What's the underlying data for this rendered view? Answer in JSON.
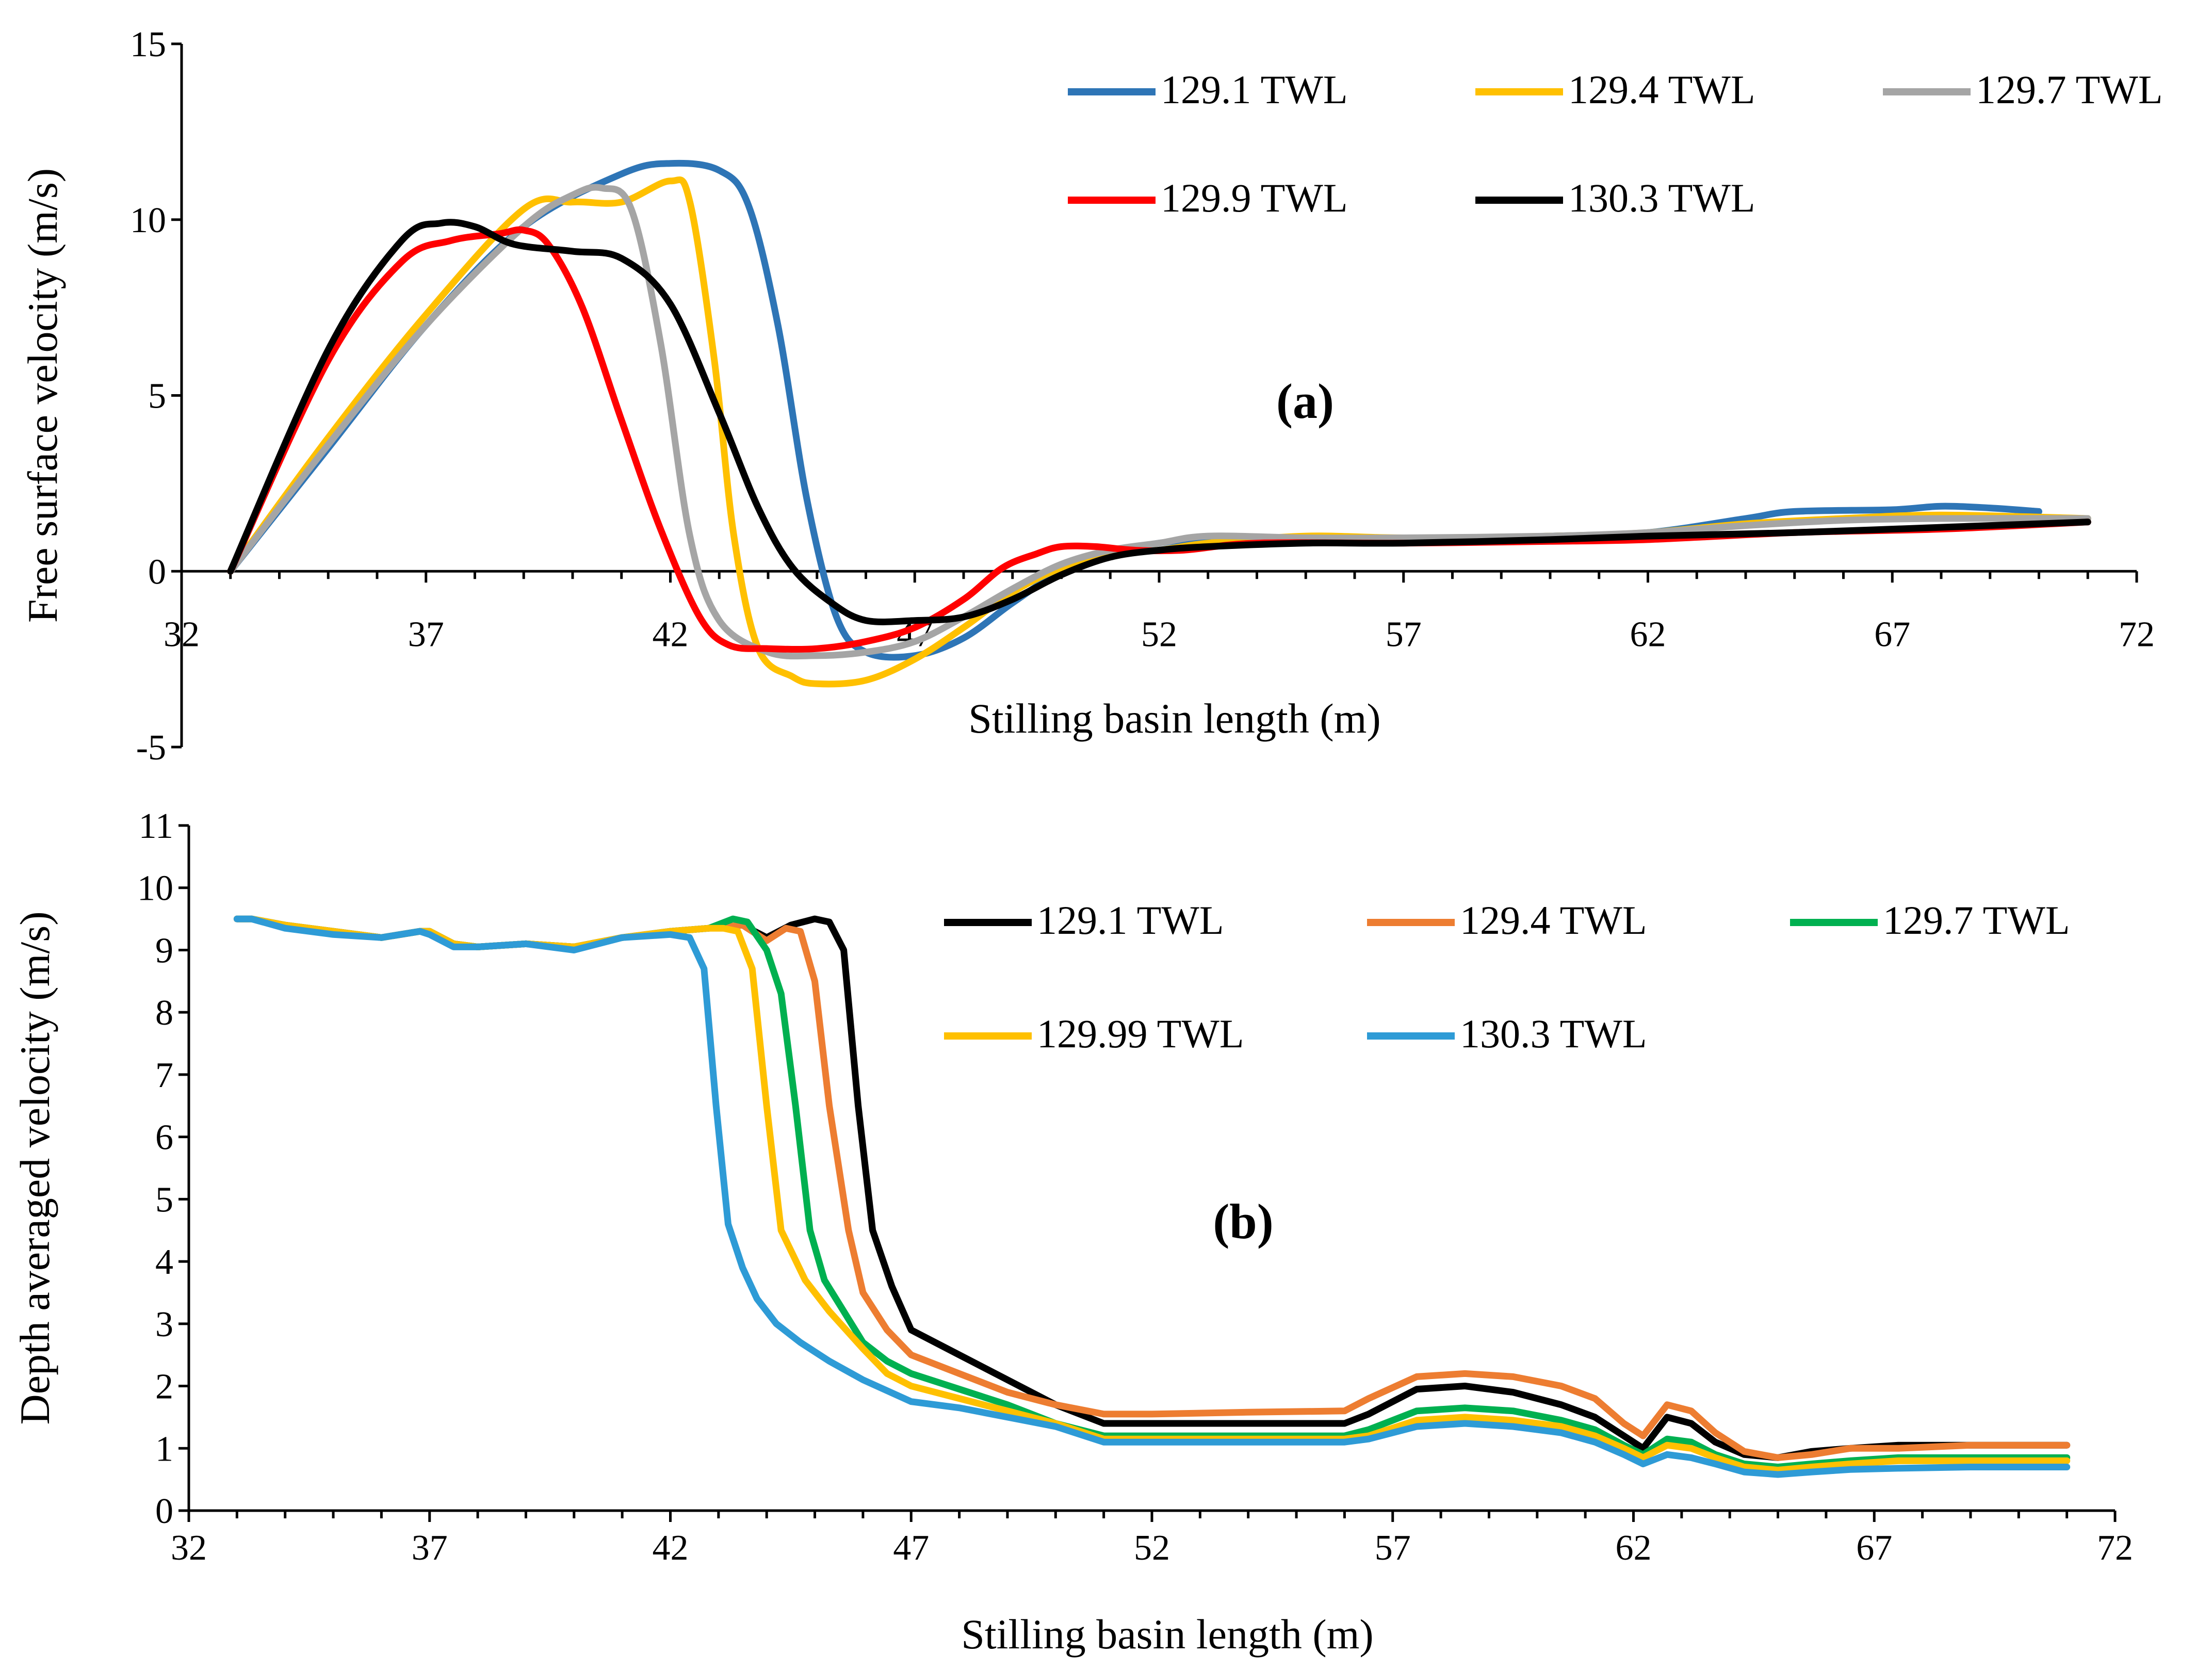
{
  "chart_data": [
    {
      "id": "a",
      "type": "line",
      "panel_label": "(a)",
      "title": "",
      "xlabel": "Stilling basin length (m)",
      "ylabel": "Free surface velocity (m/s)",
      "xlim": [
        32,
        72
      ],
      "ylim": [
        -5,
        15
      ],
      "xticks": [
        "32",
        "37",
        "42",
        "47",
        "52",
        "57",
        "62",
        "67",
        "72"
      ],
      "yticks": [
        "-5",
        "0",
        "5",
        "10",
        "15"
      ],
      "grid": false,
      "legend": "top-right",
      "series": [
        {
          "name": "129.1 TWL",
          "color": "#2E75B6",
          "x": [
            33,
            35,
            37,
            39,
            41,
            42,
            43,
            43.6,
            44.2,
            44.8,
            45.4,
            46,
            47,
            48,
            49,
            50,
            51,
            52,
            53,
            55,
            57,
            60,
            62,
            64,
            65,
            67,
            68,
            69,
            70
          ],
          "y": [
            0,
            3.5,
            7,
            9.8,
            11.3,
            11.6,
            11.4,
            10.4,
            7,
            2,
            -1.3,
            -2.3,
            -2.4,
            -1.9,
            -0.9,
            0,
            0.5,
            0.8,
            0.9,
            0.9,
            0.9,
            1,
            1.1,
            1.5,
            1.7,
            1.75,
            1.85,
            1.8,
            1.7
          ]
        },
        {
          "name": "129.4 TWL",
          "color": "#FFC000",
          "x": [
            33,
            35,
            37,
            39,
            40,
            41,
            42,
            42.4,
            42.9,
            43.3,
            43.8,
            44.5,
            45,
            46,
            47,
            48,
            49,
            50,
            51,
            52,
            53,
            55,
            57,
            60,
            62,
            64,
            66,
            68,
            71
          ],
          "y": [
            0,
            3.8,
            7.3,
            10.3,
            10.5,
            10.5,
            11.1,
            10.5,
            6,
            1,
            -2.2,
            -3,
            -3.2,
            -3.1,
            -2.5,
            -1.6,
            -0.6,
            0.1,
            0.5,
            0.6,
            0.8,
            1,
            0.95,
            1,
            1.1,
            1.35,
            1.5,
            1.6,
            1.5
          ]
        },
        {
          "name": "129.7 TWL",
          "color": "#A5A5A5",
          "x": [
            33,
            35,
            37,
            39,
            40,
            40.6,
            41.2,
            41.8,
            42.4,
            43,
            44,
            45,
            46,
            47,
            48,
            49,
            50,
            51,
            52,
            53,
            55,
            57,
            60,
            62,
            64,
            66,
            68,
            71
          ],
          "y": [
            0,
            3.6,
            7,
            9.8,
            10.7,
            10.9,
            10.3,
            6.5,
            1,
            -1.4,
            -2.3,
            -2.4,
            -2.3,
            -2,
            -1.3,
            -0.5,
            0.2,
            0.6,
            0.8,
            1,
            0.95,
            0.95,
            1,
            1.1,
            1.3,
            1.45,
            1.5,
            1.5
          ]
        },
        {
          "name": "129.9 TWL",
          "color": "#FF0000",
          "x": [
            33,
            35,
            36.5,
            37.5,
            38.5,
            39,
            39.5,
            40.2,
            41,
            41.8,
            42.6,
            43.2,
            44,
            45,
            46,
            47,
            48,
            48.8,
            49.5,
            50,
            50.7,
            51.5,
            52.5,
            54,
            57,
            60,
            62,
            65,
            68,
            71
          ],
          "y": [
            0,
            6,
            8.8,
            9.4,
            9.6,
            9.7,
            9.3,
            7.5,
            4.3,
            1.2,
            -1.3,
            -2.1,
            -2.2,
            -2.2,
            -2,
            -1.6,
            -0.8,
            0.1,
            0.5,
            0.7,
            0.7,
            0.6,
            0.6,
            0.8,
            0.8,
            0.85,
            0.9,
            1.1,
            1.2,
            1.4
          ]
        },
        {
          "name": "130.3 TWL",
          "color": "#000000",
          "x": [
            33,
            35,
            36.5,
            37.3,
            38,
            38.8,
            40,
            41,
            42,
            43,
            43.8,
            44.5,
            45.3,
            46,
            47,
            48,
            49,
            50,
            51,
            52,
            53,
            55,
            57,
            60,
            62,
            65,
            68,
            71
          ],
          "y": [
            0,
            6.3,
            9.4,
            9.9,
            9.8,
            9.3,
            9.1,
            8.9,
            7.6,
            4.5,
            1.8,
            0.1,
            -0.9,
            -1.4,
            -1.4,
            -1.3,
            -0.8,
            -0.1,
            0.4,
            0.6,
            0.7,
            0.8,
            0.8,
            0.9,
            1,
            1.1,
            1.25,
            1.4
          ]
        }
      ]
    },
    {
      "id": "b",
      "type": "line",
      "panel_label": "(b)",
      "title": "",
      "xlabel": "Stilling basin length (m)",
      "ylabel": "Depth averaged velocity (m/s)",
      "xlim": [
        32,
        72
      ],
      "ylim": [
        0,
        11
      ],
      "xticks": [
        "32",
        "37",
        "42",
        "47",
        "52",
        "57",
        "62",
        "67",
        "72"
      ],
      "yticks": [
        "0",
        "1",
        "2",
        "3",
        "4",
        "5",
        "6",
        "7",
        "8",
        "9",
        "10",
        "11"
      ],
      "grid": false,
      "legend": "top-right",
      "series": [
        {
          "name": "129.1 TWL",
          "color": "#000000",
          "x": [
            33,
            33.3,
            34,
            35,
            36,
            36.8,
            37,
            37.5,
            38,
            39,
            40,
            41,
            42,
            42.8,
            43.5,
            44,
            44.5,
            45,
            45.3,
            45.6,
            45.9,
            46.2,
            46.6,
            47,
            48,
            49,
            50,
            51,
            52,
            54,
            56,
            56.5,
            57.5,
            58.5,
            59.5,
            60.5,
            61.2,
            61.8,
            62.2,
            62.7,
            63.2,
            63.7,
            64.3,
            65,
            65.7,
            66.5,
            67.5,
            69,
            71
          ],
          "y": [
            9.5,
            9.5,
            9.4,
            9.3,
            9.2,
            9.3,
            9.3,
            9.1,
            9.05,
            9.1,
            9.05,
            9.2,
            9.3,
            9.35,
            9.4,
            9.2,
            9.4,
            9.5,
            9.45,
            9,
            6.5,
            4.5,
            3.6,
            2.9,
            2.5,
            2.1,
            1.7,
            1.4,
            1.4,
            1.4,
            1.4,
            1.55,
            1.95,
            2,
            1.9,
            1.7,
            1.5,
            1.2,
            1,
            1.5,
            1.4,
            1.1,
            0.9,
            0.85,
            0.95,
            1,
            1.05,
            1.05,
            1.05
          ]
        },
        {
          "name": "129.4 TWL",
          "color": "#ED7D31",
          "x": [
            33,
            33.3,
            34,
            35,
            36,
            36.8,
            37,
            37.5,
            38,
            39,
            40,
            41,
            42,
            42.8,
            43.5,
            44,
            44.4,
            44.7,
            45,
            45.3,
            45.7,
            46,
            46.5,
            47,
            48,
            49,
            50,
            51,
            52,
            54,
            56,
            56.5,
            57.5,
            58.5,
            59.5,
            60.5,
            61.2,
            61.8,
            62.2,
            62.7,
            63.2,
            63.7,
            64.3,
            65,
            65.7,
            66.5,
            67.5,
            69,
            71
          ],
          "y": [
            9.5,
            9.5,
            9.4,
            9.3,
            9.2,
            9.3,
            9.3,
            9.1,
            9.05,
            9.1,
            9.05,
            9.2,
            9.3,
            9.35,
            9.4,
            9.15,
            9.35,
            9.3,
            8.5,
            6.5,
            4.5,
            3.5,
            2.9,
            2.5,
            2.2,
            1.9,
            1.7,
            1.55,
            1.55,
            1.58,
            1.6,
            1.8,
            2.15,
            2.2,
            2.15,
            2,
            1.8,
            1.4,
            1.2,
            1.7,
            1.6,
            1.25,
            0.95,
            0.85,
            0.9,
            1,
            1,
            1.05,
            1.05
          ]
        },
        {
          "name": "129.7 TWL",
          "color": "#00B050",
          "x": [
            33,
            33.3,
            34,
            35,
            36,
            36.8,
            37,
            37.5,
            38,
            39,
            40,
            41,
            42,
            42.8,
            43.3,
            43.6,
            44,
            44.3,
            44.6,
            44.9,
            45.2,
            45.6,
            46,
            46.5,
            47,
            48,
            49,
            50,
            51,
            52,
            54,
            56,
            56.5,
            57.5,
            58.5,
            59.5,
            60.5,
            61.2,
            61.8,
            62.2,
            62.7,
            63.2,
            63.7,
            64.3,
            65,
            65.7,
            66.5,
            67.5,
            69,
            71
          ],
          "y": [
            9.5,
            9.5,
            9.4,
            9.3,
            9.2,
            9.3,
            9.3,
            9.1,
            9.05,
            9.1,
            9.05,
            9.2,
            9.3,
            9.35,
            9.5,
            9.45,
            9,
            8.3,
            6.5,
            4.5,
            3.7,
            3.2,
            2.7,
            2.4,
            2.2,
            1.95,
            1.7,
            1.4,
            1.2,
            1.2,
            1.2,
            1.2,
            1.3,
            1.6,
            1.65,
            1.6,
            1.45,
            1.3,
            1.05,
            0.9,
            1.15,
            1.1,
            0.9,
            0.75,
            0.7,
            0.75,
            0.8,
            0.85,
            0.85,
            0.85
          ]
        },
        {
          "name": "129.99 TWL",
          "color": "#FFC000",
          "x": [
            33,
            33.3,
            34,
            35,
            36,
            36.8,
            37,
            37.5,
            38,
            39,
            40,
            41,
            42,
            42.8,
            43.1,
            43.4,
            43.7,
            44,
            44.3,
            44.8,
            45.3,
            46,
            46.5,
            47,
            48,
            49,
            50,
            51,
            52,
            54,
            56,
            56.5,
            57.5,
            58.5,
            59.5,
            60.5,
            61.2,
            61.8,
            62.2,
            62.7,
            63.2,
            63.7,
            64.3,
            65,
            65.7,
            66.5,
            67.5,
            69,
            71
          ],
          "y": [
            9.5,
            9.5,
            9.4,
            9.3,
            9.2,
            9.3,
            9.3,
            9.1,
            9.05,
            9.1,
            9.05,
            9.2,
            9.3,
            9.35,
            9.35,
            9.3,
            8.7,
            6.5,
            4.5,
            3.7,
            3.2,
            2.6,
            2.2,
            2,
            1.8,
            1.6,
            1.4,
            1.15,
            1.15,
            1.15,
            1.15,
            1.2,
            1.45,
            1.5,
            1.45,
            1.35,
            1.2,
            1,
            0.85,
            1.05,
            1,
            0.85,
            0.7,
            0.65,
            0.7,
            0.75,
            0.8,
            0.8,
            0.8
          ]
        },
        {
          "name": "130.3 TWL",
          "color": "#2E9BD6",
          "x": [
            33,
            33.3,
            34,
            35,
            36,
            36.8,
            37,
            37.5,
            38,
            39,
            40,
            41,
            42,
            42.4,
            42.7,
            42.95,
            43.2,
            43.5,
            43.8,
            44.2,
            44.7,
            45.3,
            46,
            47,
            48,
            49,
            50,
            51,
            52,
            54,
            56,
            56.5,
            57.5,
            58.5,
            59.5,
            60.5,
            61.2,
            61.8,
            62.2,
            62.7,
            63.2,
            63.7,
            64.3,
            65,
            65.7,
            66.5,
            67.5,
            69,
            71
          ],
          "y": [
            9.5,
            9.5,
            9.35,
            9.25,
            9.2,
            9.3,
            9.25,
            9.05,
            9.05,
            9.1,
            9,
            9.2,
            9.25,
            9.2,
            8.7,
            6.5,
            4.6,
            3.9,
            3.4,
            3,
            2.7,
            2.4,
            2.1,
            1.75,
            1.65,
            1.5,
            1.35,
            1.1,
            1.1,
            1.1,
            1.1,
            1.15,
            1.35,
            1.4,
            1.35,
            1.25,
            1.1,
            0.9,
            0.75,
            0.9,
            0.85,
            0.75,
            0.62,
            0.58,
            0.62,
            0.66,
            0.68,
            0.7,
            0.7
          ]
        }
      ]
    }
  ]
}
